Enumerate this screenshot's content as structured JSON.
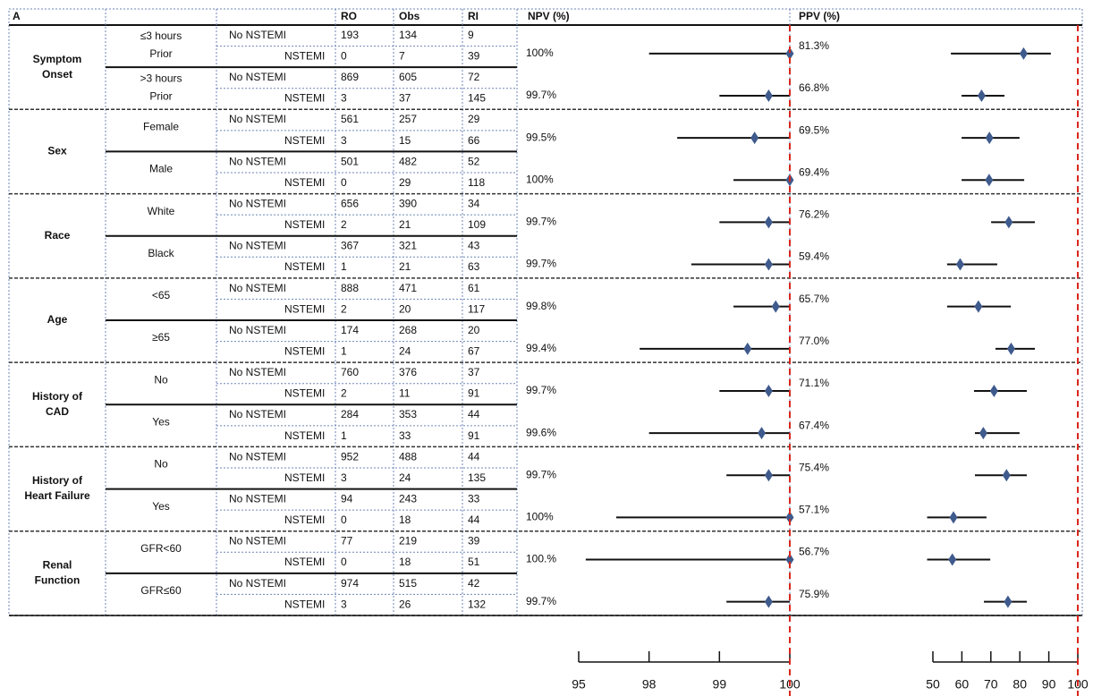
{
  "chart_data": {
    "type": "forest",
    "title": "A",
    "column_headers": [
      "RO",
      "Obs",
      "RI"
    ],
    "npv_axis": {
      "title": "NPV (%)",
      "xlim": [
        95,
        100
      ],
      "xticks": [
        95,
        98,
        99,
        100
      ],
      "ref_line": 100
    },
    "ppv_axis": {
      "title": "PPV (%)",
      "xlim": [
        50,
        100
      ],
      "xticks": [
        50,
        60,
        70,
        80,
        90,
        100
      ],
      "ref_line": 100
    },
    "marker_color": "#3f5a8c",
    "line_color": "#111111",
    "ref_color": "#d9261c",
    "groups": [
      {
        "label": [
          "Symptom",
          "Onset"
        ],
        "subgroups": [
          {
            "label": [
              "≤3 hours",
              "Prior"
            ],
            "rows": [
              {
                "outcome": "No NSTEMI",
                "values": [
                  193,
                  134,
                  9
                ]
              },
              {
                "outcome": "NSTEMI",
                "values": [
                  0,
                  7,
                  39
                ]
              }
            ],
            "npv": 100,
            "npv_label": "100%",
            "npv_ci": [
              98.0,
              100
            ],
            "ppv": 81.3,
            "ppv_label": "81.3%",
            "ppv_ci": [
              56.2,
              90.7
            ]
          },
          {
            "label": [
              ">3 hours",
              "Prior"
            ],
            "rows": [
              {
                "outcome": "No NSTEMI",
                "values": [
                  869,
                  605,
                  72
                ]
              },
              {
                "outcome": "NSTEMI",
                "values": [
                  3,
                  37,
                  145
                ]
              }
            ],
            "npv": 99.7,
            "npv_label": "99.7%",
            "npv_ci": [
              99.0,
              100
            ],
            "ppv": 66.8,
            "ppv_label": "66.8%",
            "ppv_ci": [
              59.9,
              74.7
            ]
          }
        ]
      },
      {
        "label": [
          "Sex"
        ],
        "subgroups": [
          {
            "label": [
              "Female"
            ],
            "rows": [
              {
                "outcome": "No NSTEMI",
                "values": [
                  561,
                  257,
                  29
                ]
              },
              {
                "outcome": "NSTEMI",
                "values": [
                  3,
                  15,
                  66
                ]
              }
            ],
            "npv": 99.5,
            "npv_label": "99.5%",
            "npv_ci": [
              98.4,
              100
            ],
            "ppv": 69.5,
            "ppv_label": "69.5%",
            "ppv_ci": [
              59.9,
              79.9
            ]
          },
          {
            "label": [
              "Male"
            ],
            "rows": [
              {
                "outcome": "No NSTEMI",
                "values": [
                  501,
                  482,
                  52
                ]
              },
              {
                "outcome": "NSTEMI",
                "values": [
                  0,
                  29,
                  118
                ]
              }
            ],
            "npv": 100,
            "npv_label": "100%",
            "npv_ci": [
              99.2,
              100
            ],
            "ppv": 69.4,
            "ppv_label": "69.4%",
            "ppv_ci": [
              59.9,
              81.5
            ]
          }
        ]
      },
      {
        "label": [
          "Race"
        ],
        "subgroups": [
          {
            "label": [
              "White"
            ],
            "rows": [
              {
                "outcome": "No NSTEMI",
                "values": [
                  656,
                  390,
                  34
                ]
              },
              {
                "outcome": "NSTEMI",
                "values": [
                  2,
                  21,
                  109
                ]
              }
            ],
            "npv": 99.7,
            "npv_label": "99.7%",
            "npv_ci": [
              99.0,
              100
            ],
            "ppv": 76.2,
            "ppv_label": "76.2%",
            "ppv_ci": [
              70.1,
              85.2
            ]
          },
          {
            "label": [
              "Black"
            ],
            "rows": [
              {
                "outcome": "No NSTEMI",
                "values": [
                  367,
                  321,
                  43
                ]
              },
              {
                "outcome": "NSTEMI",
                "values": [
                  1,
                  21,
                  63
                ]
              }
            ],
            "npv": 99.7,
            "npv_label": "99.7%",
            "npv_ci": [
              98.6,
              100
            ],
            "ppv": 59.4,
            "ppv_label": "59.4%",
            "ppv_ci": [
              54.9,
              72.2
            ]
          }
        ]
      },
      {
        "label": [
          "Age"
        ],
        "subgroups": [
          {
            "label": [
              "<65"
            ],
            "rows": [
              {
                "outcome": "No NSTEMI",
                "values": [
                  888,
                  471,
                  61
                ]
              },
              {
                "outcome": "NSTEMI",
                "values": [
                  2,
                  20,
                  117
                ]
              }
            ],
            "npv": 99.8,
            "npv_label": "99.8%",
            "npv_ci": [
              99.2,
              100
            ],
            "ppv": 65.7,
            "ppv_label": "65.7%",
            "ppv_ci": [
              54.9,
              76.9
            ]
          },
          {
            "label": [
              "≥65"
            ],
            "rows": [
              {
                "outcome": "No NSTEMI",
                "values": [
                  174,
                  268,
                  20
                ]
              },
              {
                "outcome": "NSTEMI",
                "values": [
                  1,
                  24,
                  67
                ]
              }
            ],
            "npv": 99.4,
            "npv_label": "99.4%",
            "npv_ci": [
              97.6,
              100
            ],
            "ppv": 77.0,
            "ppv_label": "77.0%",
            "ppv_ci": [
              71.6,
              85.2
            ]
          }
        ]
      },
      {
        "label": [
          "History of",
          "CAD"
        ],
        "subgroups": [
          {
            "label": [
              "No"
            ],
            "rows": [
              {
                "outcome": "No NSTEMI",
                "values": [
                  760,
                  376,
                  37
                ]
              },
              {
                "outcome": "NSTEMI",
                "values": [
                  2,
                  11,
                  91
                ]
              }
            ],
            "npv": 99.7,
            "npv_label": "99.7%",
            "npv_ci": [
              99.0,
              100
            ],
            "ppv": 71.1,
            "ppv_label": "71.1%",
            "ppv_ci": [
              64.2,
              82.4
            ]
          },
          {
            "label": [
              "Yes"
            ],
            "rows": [
              {
                "outcome": "No NSTEMI",
                "values": [
                  284,
                  353,
                  44
                ]
              },
              {
                "outcome": "NSTEMI",
                "values": [
                  1,
                  33,
                  91
                ]
              }
            ],
            "npv": 99.6,
            "npv_label": "99.6%",
            "npv_ci": [
              98.0,
              100
            ],
            "ppv": 67.4,
            "ppv_label": "67.4%",
            "ppv_ci": [
              64.5,
              79.9
            ]
          }
        ]
      },
      {
        "label": [
          "History of",
          "Heart Failure"
        ],
        "subgroups": [
          {
            "label": [
              "No"
            ],
            "rows": [
              {
                "outcome": "No NSTEMI",
                "values": [
                  952,
                  488,
                  44
                ]
              },
              {
                "outcome": "NSTEMI",
                "values": [
                  3,
                  24,
                  135
                ]
              }
            ],
            "npv": 99.7,
            "npv_label": "99.7%",
            "npv_ci": [
              99.1,
              100
            ],
            "ppv": 75.4,
            "ppv_label": "75.4%",
            "ppv_ci": [
              64.5,
              82.4
            ]
          },
          {
            "label": [
              "Yes"
            ],
            "rows": [
              {
                "outcome": "No NSTEMI",
                "values": [
                  94,
                  243,
                  33
                ]
              },
              {
                "outcome": "NSTEMI",
                "values": [
                  0,
                  18,
                  44
                ]
              }
            ],
            "npv": 100,
            "npv_label": "100%",
            "npv_ci": [
              96.6,
              100
            ],
            "ppv": 57.1,
            "ppv_label": "57.1%",
            "ppv_ci": [
              48.0,
              68.5
            ]
          }
        ]
      },
      {
        "label": [
          "Renal",
          "Function"
        ],
        "subgroups": [
          {
            "label": [
              "GFR<60"
            ],
            "rows": [
              {
                "outcome": "No NSTEMI",
                "values": [
                  77,
                  219,
                  39
                ]
              },
              {
                "outcome": "NSTEMI",
                "values": [
                  0,
                  18,
                  51
                ]
              }
            ],
            "npv": 100,
            "npv_label": "100.%",
            "npv_ci": [
              95.3,
              100
            ],
            "ppv": 56.7,
            "ppv_label": "56.7%",
            "ppv_ci": [
              48.0,
              69.8
            ]
          },
          {
            "label": [
              "GFR≤60"
            ],
            "rows": [
              {
                "outcome": "No NSTEMI",
                "values": [
                  974,
                  515,
                  42
                ]
              },
              {
                "outcome": "NSTEMI",
                "values": [
                  3,
                  26,
                  132
                ]
              }
            ],
            "npv": 99.7,
            "npv_label": "99.7%",
            "npv_ci": [
              99.1,
              100
            ],
            "ppv": 75.9,
            "ppv_label": "75.9%",
            "ppv_ci": [
              67.6,
              82.4
            ]
          }
        ]
      }
    ]
  }
}
